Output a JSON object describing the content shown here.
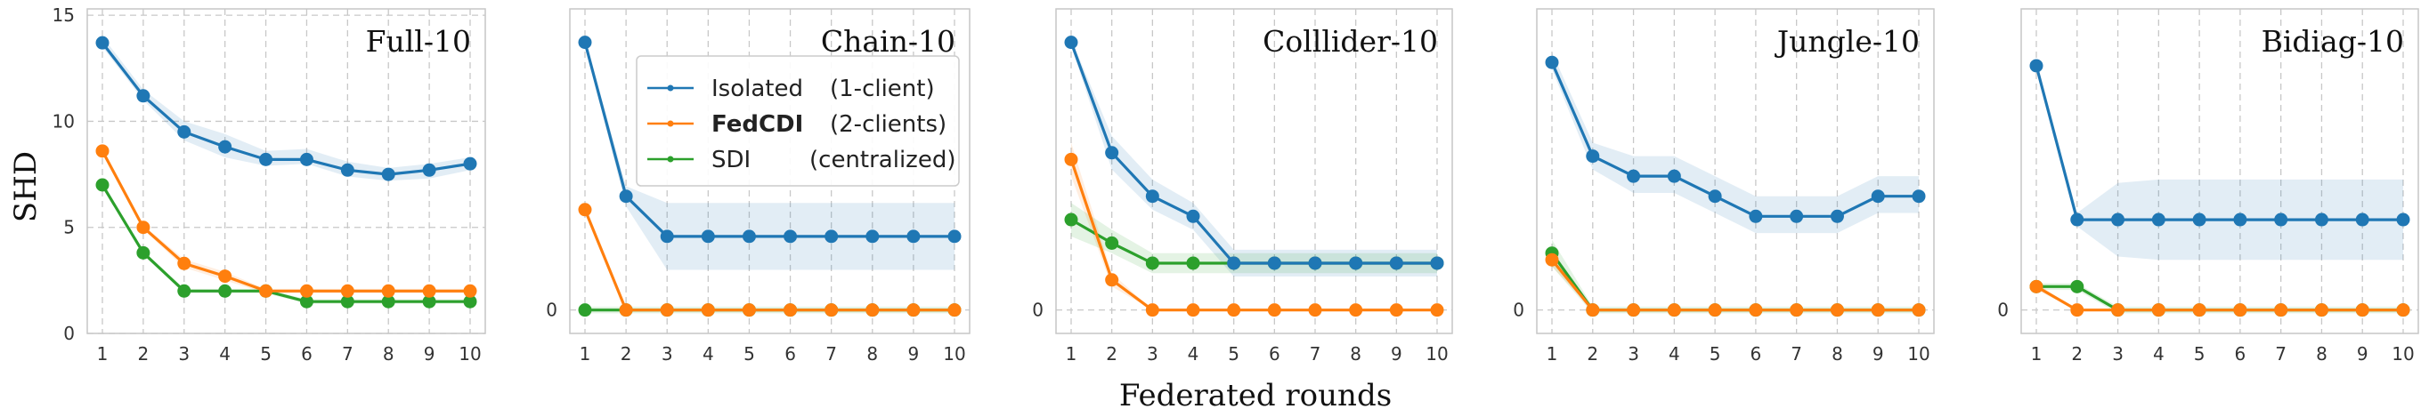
{
  "figure": {
    "ylabel": "SHD",
    "xlabel": "Federated rounds",
    "legend": {
      "placement": "inside panel 2, right",
      "entries": [
        {
          "method": "Isolated",
          "detail": "(1-client)",
          "color": "#1f77b4",
          "bold": false
        },
        {
          "method": "FedCDI",
          "detail": "(2-clients)",
          "color": "#ff7f0e",
          "bold": true
        },
        {
          "method": "SDI",
          "detail": "(centralized)",
          "color": "#2ca02c",
          "bold": false
        }
      ]
    }
  },
  "chart_data": [
    {
      "type": "line",
      "title": "Full-10",
      "x": [
        1,
        2,
        3,
        4,
        5,
        6,
        7,
        8,
        9,
        10
      ],
      "ylim": [
        0,
        15.3
      ],
      "yticks": [
        0,
        5,
        10,
        15
      ],
      "grid": true,
      "series": [
        {
          "name": "Isolated (1-client)",
          "color": "#1f77b4",
          "values": [
            13.7,
            11.2,
            9.5,
            8.8,
            8.2,
            8.2,
            7.7,
            7.5,
            7.7,
            8.0
          ],
          "band": [
            [
              13.5,
              14.0
            ],
            [
              11.0,
              11.5
            ],
            [
              9.1,
              10.0
            ],
            [
              8.3,
              9.4
            ],
            [
              7.9,
              8.6
            ],
            [
              8.0,
              8.7
            ],
            [
              7.4,
              8.1
            ],
            [
              7.2,
              7.8
            ],
            [
              7.3,
              8.0
            ],
            [
              7.7,
              8.3
            ]
          ]
        },
        {
          "name": "FedCDI (2-clients)",
          "color": "#ff7f0e",
          "values": [
            8.6,
            5.0,
            3.3,
            2.7,
            2.0,
            2.0,
            2.0,
            2.0,
            2.0,
            2.0
          ],
          "band": [
            [
              8.5,
              8.7
            ],
            [
              4.9,
              5.1
            ],
            [
              3.1,
              3.5
            ],
            [
              2.5,
              2.9
            ],
            [
              1.9,
              2.1
            ],
            [
              1.9,
              2.1
            ],
            [
              1.9,
              2.1
            ],
            [
              1.9,
              2.1
            ],
            [
              1.9,
              2.1
            ],
            [
              1.9,
              2.1
            ]
          ]
        },
        {
          "name": "SDI (centralized)",
          "color": "#2ca02c",
          "values": [
            7.0,
            3.8,
            2.0,
            2.0,
            2.0,
            1.5,
            1.5,
            1.5,
            1.5,
            1.5
          ],
          "band": [
            [
              6.9,
              7.1
            ],
            [
              3.7,
              3.9
            ],
            [
              1.9,
              2.1
            ],
            [
              1.9,
              2.1
            ],
            [
              1.9,
              2.1
            ],
            [
              1.4,
              1.6
            ],
            [
              1.4,
              1.6
            ],
            [
              1.4,
              1.6
            ],
            [
              1.4,
              1.6
            ],
            [
              1.4,
              1.6
            ]
          ]
        }
      ]
    },
    {
      "type": "line",
      "title": "Chain-10",
      "x": [
        1,
        2,
        3,
        4,
        5,
        6,
        7,
        8,
        9,
        10
      ],
      "ylim": [
        -0.7,
        9
      ],
      "yticks": [
        0
      ],
      "grid": true,
      "series": [
        {
          "name": "Isolated (1-client)",
          "color": "#1f77b4",
          "values": [
            8.0,
            3.4,
            2.2,
            2.2,
            2.2,
            2.2,
            2.2,
            2.2,
            2.2,
            2.2
          ],
          "band": [
            [
              7.9,
              8.1
            ],
            [
              3.1,
              3.7
            ],
            [
              1.2,
              3.2
            ],
            [
              1.2,
              3.2
            ],
            [
              1.2,
              3.2
            ],
            [
              1.2,
              3.2
            ],
            [
              1.2,
              3.2
            ],
            [
              1.2,
              3.2
            ],
            [
              1.2,
              3.2
            ],
            [
              1.2,
              3.2
            ]
          ]
        },
        {
          "name": "FedCDI (2-clients)",
          "color": "#ff7f0e",
          "values": [
            3.0,
            0,
            0,
            0,
            0,
            0,
            0,
            0,
            0,
            0
          ],
          "band": [
            [
              2.9,
              3.1
            ],
            [
              0,
              0
            ],
            [
              0,
              0
            ],
            [
              0,
              0
            ],
            [
              0,
              0
            ],
            [
              0,
              0
            ],
            [
              0,
              0
            ],
            [
              0,
              0
            ],
            [
              0,
              0
            ],
            [
              0,
              0
            ]
          ]
        },
        {
          "name": "SDI (centralized)",
          "color": "#2ca02c",
          "values": [
            0,
            0,
            0,
            0,
            0,
            0,
            0,
            0,
            0,
            0
          ],
          "band": [
            [
              -0.1,
              0.1
            ],
            [
              -0.1,
              0.1
            ],
            [
              -0.1,
              0.1
            ],
            [
              -0.1,
              0.1
            ],
            [
              -0.1,
              0.1
            ],
            [
              -0.1,
              0.1
            ],
            [
              -0.1,
              0.1
            ],
            [
              -0.1,
              0.1
            ],
            [
              -0.1,
              0.1
            ],
            [
              -0.1,
              0.1
            ]
          ]
        }
      ]
    },
    {
      "type": "line",
      "title": "Colllider-10",
      "x": [
        1,
        2,
        3,
        4,
        5,
        6,
        7,
        8,
        9,
        10
      ],
      "ylim": [
        -0.7,
        9
      ],
      "yticks": [
        0
      ],
      "grid": true,
      "series": [
        {
          "name": "Isolated (1-client)",
          "color": "#1f77b4",
          "values": [
            8.0,
            4.7,
            3.4,
            2.8,
            1.4,
            1.4,
            1.4,
            1.4,
            1.4,
            1.4
          ],
          "band": [
            [
              7.9,
              8.1
            ],
            [
              4.2,
              5.2
            ],
            [
              3.0,
              3.9
            ],
            [
              2.4,
              3.2
            ],
            [
              1.0,
              1.8
            ],
            [
              1.0,
              1.8
            ],
            [
              1.0,
              1.8
            ],
            [
              1.0,
              1.8
            ],
            [
              1.0,
              1.8
            ],
            [
              1.0,
              1.8
            ]
          ]
        },
        {
          "name": "FedCDI (2-clients)",
          "color": "#ff7f0e",
          "values": [
            4.5,
            0.9,
            0,
            0,
            0,
            0,
            0,
            0,
            0,
            0
          ],
          "band": [
            [
              4.0,
              5.0
            ],
            [
              0.7,
              1.1
            ],
            [
              0,
              0
            ],
            [
              0,
              0
            ],
            [
              0,
              0
            ],
            [
              0,
              0
            ],
            [
              0,
              0
            ],
            [
              0,
              0
            ],
            [
              0,
              0
            ],
            [
              0,
              0
            ]
          ]
        },
        {
          "name": "SDI (centralized)",
          "color": "#2ca02c",
          "values": [
            2.7,
            2.0,
            1.4,
            1.4,
            1.4,
            1.4,
            1.4,
            1.4,
            1.4,
            1.4
          ],
          "band": [
            [
              2.2,
              3.2
            ],
            [
              1.7,
              2.4
            ],
            [
              1.1,
              1.7
            ],
            [
              1.1,
              1.7
            ],
            [
              1.1,
              1.7
            ],
            [
              1.1,
              1.7
            ],
            [
              1.1,
              1.7
            ],
            [
              1.1,
              1.7
            ],
            [
              1.1,
              1.7
            ],
            [
              1.1,
              1.7
            ]
          ]
        }
      ]
    },
    {
      "type": "line",
      "title": "Jungle-10",
      "x": [
        1,
        2,
        3,
        4,
        5,
        6,
        7,
        8,
        9,
        10
      ],
      "ylim": [
        -0.7,
        9
      ],
      "yticks": [
        0
      ],
      "grid": true,
      "series": [
        {
          "name": "Isolated (1-client)",
          "color": "#1f77b4",
          "values": [
            7.4,
            4.6,
            4.0,
            4.0,
            3.4,
            2.8,
            2.8,
            2.8,
            3.4,
            3.4
          ],
          "band": [
            [
              7.2,
              7.7
            ],
            [
              4.2,
              5.0
            ],
            [
              3.5,
              4.6
            ],
            [
              3.5,
              4.6
            ],
            [
              2.9,
              4.0
            ],
            [
              2.3,
              3.4
            ],
            [
              2.3,
              3.4
            ],
            [
              2.3,
              3.4
            ],
            [
              2.9,
              4.0
            ],
            [
              2.9,
              4.0
            ]
          ]
        },
        {
          "name": "FedCDI (2-clients)",
          "color": "#ff7f0e",
          "values": [
            1.5,
            0,
            0,
            0,
            0,
            0,
            0,
            0,
            0,
            0
          ],
          "band": [
            [
              1.3,
              1.7
            ],
            [
              0,
              0
            ],
            [
              0,
              0
            ],
            [
              0,
              0
            ],
            [
              0,
              0
            ],
            [
              0,
              0
            ],
            [
              0,
              0
            ],
            [
              0,
              0
            ],
            [
              0,
              0
            ],
            [
              0,
              0
            ]
          ]
        },
        {
          "name": "SDI (centralized)",
          "color": "#2ca02c",
          "values": [
            1.7,
            0,
            0,
            0,
            0,
            0,
            0,
            0,
            0,
            0
          ],
          "band": [
            [
              1.3,
              2.1
            ],
            [
              -0.1,
              0.1
            ],
            [
              -0.1,
              0.1
            ],
            [
              -0.1,
              0.1
            ],
            [
              -0.1,
              0.1
            ],
            [
              -0.1,
              0.1
            ],
            [
              -0.1,
              0.1
            ],
            [
              -0.1,
              0.1
            ],
            [
              -0.1,
              0.1
            ],
            [
              -0.1,
              0.1
            ]
          ]
        }
      ]
    },
    {
      "type": "line",
      "title": "Bidiag-10",
      "x": [
        1,
        2,
        3,
        4,
        5,
        6,
        7,
        8,
        9,
        10
      ],
      "ylim": [
        -0.7,
        9
      ],
      "yticks": [
        0
      ],
      "grid": true,
      "series": [
        {
          "name": "Isolated (1-client)",
          "color": "#1f77b4",
          "values": [
            7.3,
            2.7,
            2.7,
            2.7,
            2.7,
            2.7,
            2.7,
            2.7,
            2.7,
            2.7
          ],
          "band": [
            [
              7.2,
              7.4
            ],
            [
              2.5,
              2.9
            ],
            [
              1.6,
              3.8
            ],
            [
              1.5,
              3.9
            ],
            [
              1.5,
              3.9
            ],
            [
              1.5,
              3.9
            ],
            [
              1.5,
              3.9
            ],
            [
              1.5,
              3.9
            ],
            [
              1.5,
              3.9
            ],
            [
              1.5,
              3.9
            ]
          ]
        },
        {
          "name": "FedCDI (2-clients)",
          "color": "#ff7f0e",
          "values": [
            0.7,
            0,
            0,
            0,
            0,
            0,
            0,
            0,
            0,
            0
          ],
          "band": [
            [
              0.6,
              0.8
            ],
            [
              0,
              0
            ],
            [
              0,
              0
            ],
            [
              0,
              0
            ],
            [
              0,
              0
            ],
            [
              0,
              0
            ],
            [
              0,
              0
            ],
            [
              0,
              0
            ],
            [
              0,
              0
            ],
            [
              0,
              0
            ]
          ]
        },
        {
          "name": "SDI (centralized)",
          "color": "#2ca02c",
          "values": [
            0.7,
            0.7,
            0,
            0,
            0,
            0,
            0,
            0,
            0,
            0
          ],
          "band": [
            [
              0.6,
              0.8
            ],
            [
              0.6,
              0.8
            ],
            [
              -0.1,
              0.1
            ],
            [
              -0.1,
              0.1
            ],
            [
              -0.1,
              0.1
            ],
            [
              -0.1,
              0.1
            ],
            [
              -0.1,
              0.1
            ],
            [
              -0.1,
              0.1
            ],
            [
              -0.1,
              0.1
            ],
            [
              -0.1,
              0.1
            ]
          ]
        }
      ]
    }
  ]
}
